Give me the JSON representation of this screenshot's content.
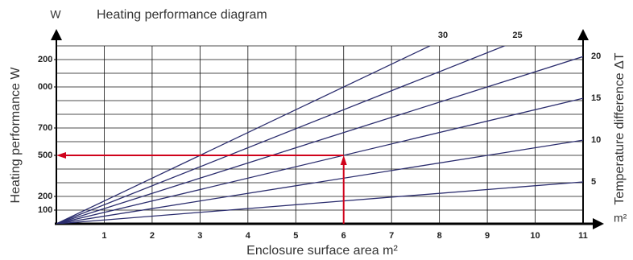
{
  "chart_data": {
    "type": "line",
    "title": "Heating performance diagram",
    "xlabel": "Enclosure surface area m²",
    "ylabel": "Heating performance W",
    "y2label": "Temperature difference ΔT",
    "xunit": "m²",
    "yunit": "W",
    "x": [
      0,
      11
    ],
    "xlim": [
      0,
      11
    ],
    "xticks": [
      1,
      2,
      3,
      4,
      5,
      6,
      7,
      8,
      9,
      10,
      11
    ],
    "ylim": [
      0,
      1300
    ],
    "yticks": [
      {
        "value": 1200,
        "label": "200"
      },
      {
        "value": 1000,
        "label": "000"
      },
      700,
      500,
      200,
      100
    ],
    "ygrid": [
      100,
      200,
      300,
      400,
      500,
      600,
      700,
      800,
      900,
      1000,
      1100,
      1200,
      1300
    ],
    "grid": true,
    "series": [
      {
        "name": "5",
        "color": "#2b2d6e",
        "values": [
          0,
          306
        ]
      },
      {
        "name": "10",
        "color": "#2b2d6e",
        "values": [
          0,
          611
        ]
      },
      {
        "name": "15",
        "color": "#2b2d6e",
        "values": [
          0,
          917
        ]
      },
      {
        "name": "20",
        "color": "#2b2d6e",
        "values": [
          0,
          1222
        ]
      },
      {
        "name": "25",
        "color": "#2b2d6e",
        "values": [
          0,
          1528
        ]
      },
      {
        "name": "30",
        "color": "#2b2d6e",
        "values": [
          0,
          1833
        ]
      }
    ],
    "annotation": {
      "x": 6,
      "y": 500,
      "color": "#d0021b"
    }
  }
}
